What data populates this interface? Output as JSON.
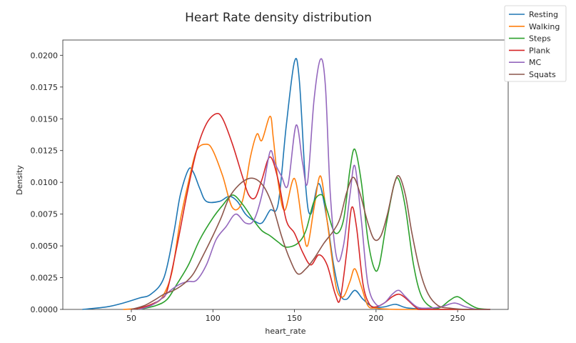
{
  "chart_data": {
    "type": "line",
    "title": "Heart Rate density distribution",
    "xlabel": "heart_rate",
    "ylabel": "Density",
    "xlim": [
      8,
      281
    ],
    "ylim": [
      0,
      0.0212
    ],
    "xticks": [
      50,
      100,
      150,
      200,
      250
    ],
    "yticks": [
      0,
      0.0025,
      0.005,
      0.0075,
      0.01,
      0.0125,
      0.015,
      0.0175,
      0.02
    ],
    "ytick_labels": [
      "0.0000",
      "0.0025",
      "0.0050",
      "0.0075",
      "0.0100",
      "0.0125",
      "0.0150",
      "0.0175",
      "0.0200"
    ],
    "grid": false,
    "legend_position": "top-right",
    "series": [
      {
        "name": "Resting",
        "color": "#1f77b4",
        "points": [
          [
            20,
            0
          ],
          [
            35,
            0.0002
          ],
          [
            45,
            0.0005
          ],
          [
            55,
            0.0009
          ],
          [
            62,
            0.0012
          ],
          [
            70,
            0.0025
          ],
          [
            76,
            0.006
          ],
          [
            80,
            0.009
          ],
          [
            85,
            0.011
          ],
          [
            88,
            0.0108
          ],
          [
            92,
            0.0095
          ],
          [
            96,
            0.0085
          ],
          [
            104,
            0.0085
          ],
          [
            110,
            0.0089
          ],
          [
            115,
            0.0085
          ],
          [
            120,
            0.0075
          ],
          [
            125,
            0.007
          ],
          [
            130,
            0.0068
          ],
          [
            135,
            0.0078
          ],
          [
            140,
            0.0083
          ],
          [
            145,
            0.0145
          ],
          [
            150,
            0.0195
          ],
          [
            153,
            0.018
          ],
          [
            157,
            0.0095
          ],
          [
            160,
            0.0075
          ],
          [
            165,
            0.0099
          ],
          [
            170,
            0.007
          ],
          [
            174,
            0.0035
          ],
          [
            178,
            0.0012
          ],
          [
            182,
            0.0008
          ],
          [
            187,
            0.0015
          ],
          [
            192,
            0.0008
          ],
          [
            198,
            0.0002
          ],
          [
            205,
            0.0002
          ],
          [
            212,
            0.0004
          ],
          [
            220,
            0.0001
          ],
          [
            240,
            0
          ],
          [
            270,
            0
          ]
        ]
      },
      {
        "name": "Walking",
        "color": "#ff7f0e",
        "points": [
          [
            45,
            0
          ],
          [
            55,
            0.0001
          ],
          [
            65,
            0.0005
          ],
          [
            70,
            0.0012
          ],
          [
            75,
            0.003
          ],
          [
            80,
            0.007
          ],
          [
            85,
            0.01
          ],
          [
            90,
            0.0125
          ],
          [
            96,
            0.013
          ],
          [
            100,
            0.0125
          ],
          [
            106,
            0.0105
          ],
          [
            112,
            0.008
          ],
          [
            118,
            0.0085
          ],
          [
            123,
            0.012
          ],
          [
            127,
            0.0138
          ],
          [
            130,
            0.0133
          ],
          [
            135,
            0.0152
          ],
          [
            137,
            0.0135
          ],
          [
            140,
            0.01
          ],
          [
            144,
            0.0078
          ],
          [
            150,
            0.0103
          ],
          [
            155,
            0.0065
          ],
          [
            158,
            0.005
          ],
          [
            162,
            0.008
          ],
          [
            166,
            0.0105
          ],
          [
            170,
            0.007
          ],
          [
            173,
            0.004
          ],
          [
            176,
            0.0015
          ],
          [
            180,
            0.001
          ],
          [
            184,
            0.0022
          ],
          [
            187,
            0.0032
          ],
          [
            191,
            0.0018
          ],
          [
            195,
            0.0003
          ],
          [
            200,
            0.0001
          ],
          [
            215,
            0
          ],
          [
            270,
            0
          ]
        ]
      },
      {
        "name": "Steps",
        "color": "#2ca02c",
        "points": [
          [
            55,
            0
          ],
          [
            65,
            0.0003
          ],
          [
            72,
            0.0008
          ],
          [
            78,
            0.002
          ],
          [
            85,
            0.0035
          ],
          [
            92,
            0.0055
          ],
          [
            100,
            0.0072
          ],
          [
            106,
            0.0082
          ],
          [
            112,
            0.009
          ],
          [
            118,
            0.0083
          ],
          [
            125,
            0.007
          ],
          [
            130,
            0.0062
          ],
          [
            135,
            0.0058
          ],
          [
            140,
            0.0053
          ],
          [
            145,
            0.0049
          ],
          [
            152,
            0.0052
          ],
          [
            157,
            0.0062
          ],
          [
            162,
            0.0085
          ],
          [
            167,
            0.009
          ],
          [
            170,
            0.0078
          ],
          [
            175,
            0.006
          ],
          [
            180,
            0.007
          ],
          [
            184,
            0.011
          ],
          [
            187,
            0.0126
          ],
          [
            191,
            0.01
          ],
          [
            195,
            0.0055
          ],
          [
            199,
            0.0032
          ],
          [
            202,
            0.0035
          ],
          [
            206,
            0.0065
          ],
          [
            211,
            0.0098
          ],
          [
            214,
            0.0102
          ],
          [
            218,
            0.008
          ],
          [
            223,
            0.0035
          ],
          [
            228,
            0.001
          ],
          [
            235,
            0.0001
          ],
          [
            240,
            0.0002
          ],
          [
            245,
            0.0007
          ],
          [
            250,
            0.001
          ],
          [
            256,
            0.0005
          ],
          [
            262,
            0.0001
          ],
          [
            270,
            0
          ]
        ]
      },
      {
        "name": "Plank",
        "color": "#d62728",
        "points": [
          [
            50,
            0
          ],
          [
            58,
            0.0002
          ],
          [
            64,
            0.0005
          ],
          [
            68,
            0.0008
          ],
          [
            72,
            0.0015
          ],
          [
            78,
            0.005
          ],
          [
            84,
            0.009
          ],
          [
            90,
            0.0125
          ],
          [
            96,
            0.0146
          ],
          [
            102,
            0.0154
          ],
          [
            106,
            0.015
          ],
          [
            112,
            0.013
          ],
          [
            118,
            0.0105
          ],
          [
            122,
            0.009
          ],
          [
            126,
            0.0088
          ],
          [
            130,
            0.0102
          ],
          [
            135,
            0.012
          ],
          [
            140,
            0.0102
          ],
          [
            145,
            0.007
          ],
          [
            150,
            0.006
          ],
          [
            155,
            0.0045
          ],
          [
            160,
            0.0035
          ],
          [
            165,
            0.0043
          ],
          [
            170,
            0.0035
          ],
          [
            175,
            0.0012
          ],
          [
            178,
            0.0008
          ],
          [
            182,
            0.0045
          ],
          [
            185,
            0.008
          ],
          [
            188,
            0.0065
          ],
          [
            192,
            0.002
          ],
          [
            196,
            0.0004
          ],
          [
            200,
            0.0002
          ],
          [
            205,
            0.0005
          ],
          [
            210,
            0.001
          ],
          [
            214,
            0.0012
          ],
          [
            218,
            0.0009
          ],
          [
            225,
            0.0001
          ],
          [
            230,
            0
          ],
          [
            270,
            0
          ]
        ]
      },
      {
        "name": "MC",
        "color": "#9467bd",
        "points": [
          [
            55,
            0
          ],
          [
            62,
            0.0003
          ],
          [
            68,
            0.0008
          ],
          [
            74,
            0.0015
          ],
          [
            80,
            0.002
          ],
          [
            85,
            0.0022
          ],
          [
            90,
            0.0023
          ],
          [
            96,
            0.0035
          ],
          [
            102,
            0.0055
          ],
          [
            108,
            0.0065
          ],
          [
            114,
            0.0075
          ],
          [
            120,
            0.0068
          ],
          [
            125,
            0.007
          ],
          [
            130,
            0.009
          ],
          [
            135,
            0.0124
          ],
          [
            138,
            0.0115
          ],
          [
            142,
            0.0105
          ],
          [
            146,
            0.0098
          ],
          [
            151,
            0.0145
          ],
          [
            155,
            0.0115
          ],
          [
            158,
            0.01
          ],
          [
            162,
            0.0165
          ],
          [
            166,
            0.0197
          ],
          [
            169,
            0.0175
          ],
          [
            172,
            0.009
          ],
          [
            176,
            0.004
          ],
          [
            180,
            0.005
          ],
          [
            184,
            0.009
          ],
          [
            187,
            0.0113
          ],
          [
            191,
            0.007
          ],
          [
            195,
            0.002
          ],
          [
            200,
            0.0004
          ],
          [
            205,
            0.0005
          ],
          [
            210,
            0.0012
          ],
          [
            214,
            0.0015
          ],
          [
            218,
            0.001
          ],
          [
            225,
            0.0002
          ],
          [
            232,
            0.0001
          ],
          [
            240,
            0.0002
          ],
          [
            248,
            0.0005
          ],
          [
            255,
            0.0002
          ],
          [
            262,
            0
          ],
          [
            270,
            0
          ]
        ]
      },
      {
        "name": "Squats",
        "color": "#8c564b",
        "points": [
          [
            50,
            0
          ],
          [
            58,
            0.0003
          ],
          [
            65,
            0.0008
          ],
          [
            70,
            0.0012
          ],
          [
            76,
            0.0015
          ],
          [
            82,
            0.002
          ],
          [
            88,
            0.0028
          ],
          [
            95,
            0.0045
          ],
          [
            100,
            0.0058
          ],
          [
            105,
            0.0072
          ],
          [
            110,
            0.0088
          ],
          [
            116,
            0.0098
          ],
          [
            122,
            0.0103
          ],
          [
            127,
            0.0102
          ],
          [
            132,
            0.0095
          ],
          [
            137,
            0.008
          ],
          [
            142,
            0.0058
          ],
          [
            147,
            0.004
          ],
          [
            152,
            0.0028
          ],
          [
            157,
            0.0032
          ],
          [
            162,
            0.004
          ],
          [
            168,
            0.0052
          ],
          [
            174,
            0.0062
          ],
          [
            178,
            0.0072
          ],
          [
            182,
            0.0092
          ],
          [
            186,
            0.0104
          ],
          [
            190,
            0.0092
          ],
          [
            195,
            0.0068
          ],
          [
            199,
            0.0055
          ],
          [
            203,
            0.0058
          ],
          [
            207,
            0.0075
          ],
          [
            211,
            0.0098
          ],
          [
            214,
            0.0105
          ],
          [
            218,
            0.009
          ],
          [
            222,
            0.006
          ],
          [
            227,
            0.003
          ],
          [
            232,
            0.0012
          ],
          [
            238,
            0.0003
          ],
          [
            245,
            0.0001
          ],
          [
            255,
            0
          ],
          [
            270,
            0
          ]
        ]
      }
    ]
  }
}
